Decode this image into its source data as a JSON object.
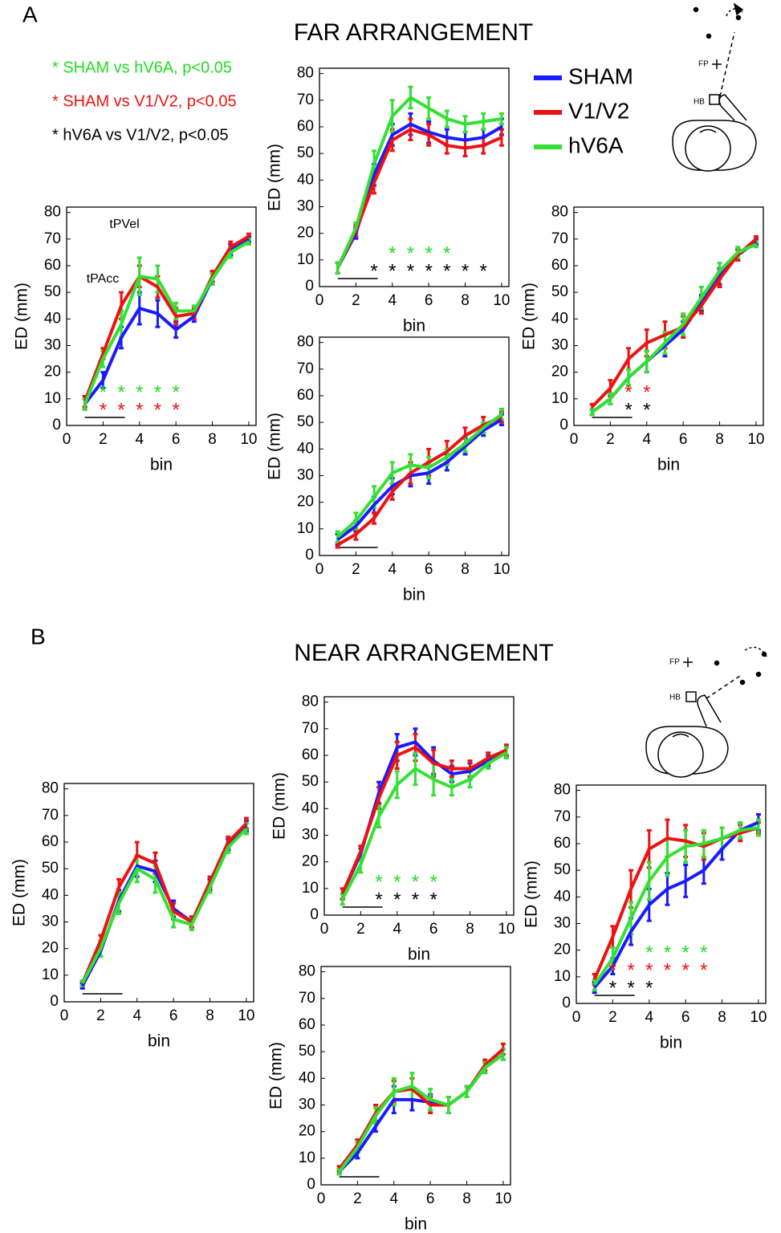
{
  "panel_labels": [
    "A",
    "B"
  ],
  "sections": [
    {
      "title": "FAR ARRANGEMENT"
    },
    {
      "title": "NEAR ARRANGEMENT"
    }
  ],
  "significance_legend": [
    {
      "text": "* SHAM vs hV6A, p<0.05",
      "color": "#22dd22"
    },
    {
      "text": "* SHAM vs V1/V2, p<0.05",
      "color": "#ee1111"
    },
    {
      "text": "* hV6A vs V1/V2, p<0.05",
      "color": "#000000"
    }
  ],
  "diagram_labels": {
    "fp": "FP",
    "hb": "HB"
  },
  "chart_data": [
    {
      "type": "line",
      "x": [
        1,
        2,
        3,
        4,
        5,
        6,
        7,
        8,
        9,
        10
      ],
      "xlim": [
        0,
        10.4
      ],
      "ylim": [
        0,
        82
      ],
      "xticks": [
        0,
        2,
        4,
        6,
        8,
        10
      ],
      "yticks": [
        0,
        10,
        20,
        30,
        40,
        50,
        60,
        70,
        80
      ],
      "xlabel": "bin",
      "ylabel": "ED (mm)",
      "time_bar": [
        1,
        3.2
      ],
      "annotations": [
        "tPVel",
        "tPAcc"
      ],
      "series": [
        {
          "name": "SHAM",
          "color": "#1a1aff",
          "values": [
            8,
            17,
            33,
            44,
            42,
            36,
            41,
            55,
            66,
            70
          ],
          "errors": [
            2,
            3,
            4,
            6,
            5,
            3,
            2,
            2,
            2,
            1
          ]
        },
        {
          "name": "V1/V2",
          "color": "#ee1111",
          "values": [
            9,
            27,
            45,
            56,
            52,
            41,
            42,
            56,
            67,
            71
          ],
          "errors": [
            2,
            2,
            5,
            4,
            4,
            3,
            2,
            2,
            2,
            1
          ]
        },
        {
          "name": "hV6A",
          "color": "#33e033",
          "values": [
            8,
            25,
            38,
            56,
            55,
            43,
            43,
            55,
            65,
            69
          ],
          "errors": [
            2,
            3,
            5,
            7,
            5,
            3,
            2,
            2,
            2,
            1
          ]
        }
      ],
      "significance": [
        {
          "symbol": "*",
          "color": "#22dd22",
          "bins": [
            2,
            3,
            4,
            5,
            6
          ]
        },
        {
          "symbol": "*",
          "color": "#ee1111",
          "bins": [
            2,
            3,
            4,
            5,
            6
          ]
        }
      ]
    },
    {
      "type": "line",
      "x": [
        1,
        2,
        3,
        4,
        5,
        6,
        7,
        8,
        9,
        10
      ],
      "xlim": [
        0,
        10.4
      ],
      "ylim": [
        0,
        82
      ],
      "xticks": [
        0,
        2,
        4,
        6,
        8,
        10
      ],
      "yticks": [
        0,
        10,
        20,
        30,
        40,
        50,
        60,
        70,
        80
      ],
      "xlabel": "bin",
      "ylabel": "ED (mm)",
      "time_bar": [
        1,
        3.2
      ],
      "series": [
        {
          "name": "SHAM",
          "color": "#1a1aff",
          "values": [
            7,
            20,
            42,
            57,
            61,
            58,
            56,
            55,
            56,
            60
          ],
          "errors": [
            2,
            2,
            4,
            4,
            4,
            4,
            3,
            3,
            3,
            3
          ]
        },
        {
          "name": "V1/V2",
          "color": "#ee1111",
          "values": [
            7,
            21,
            39,
            55,
            59,
            57,
            53,
            52,
            53,
            56
          ],
          "errors": [
            2,
            2,
            4,
            4,
            4,
            4,
            3,
            3,
            3,
            3
          ]
        },
        {
          "name": "hV6A",
          "color": "#33e033",
          "values": [
            7,
            22,
            46,
            64,
            71,
            67,
            63,
            61,
            62,
            63
          ],
          "errors": [
            2,
            2,
            5,
            6,
            4,
            4,
            3,
            3,
            3,
            2
          ]
        }
      ],
      "significance": [
        {
          "symbol": "*",
          "color": "#22dd22",
          "bins": [
            4,
            5,
            6,
            7
          ]
        },
        {
          "symbol": "*",
          "color": "#000000",
          "bins": [
            3,
            4,
            5,
            6,
            7,
            8,
            9
          ]
        }
      ]
    },
    {
      "type": "line",
      "x": [
        1,
        2,
        3,
        4,
        5,
        6,
        7,
        8,
        9,
        10
      ],
      "xlim": [
        0,
        10.4
      ],
      "ylim": [
        0,
        82
      ],
      "xticks": [
        0,
        2,
        4,
        6,
        8,
        10
      ],
      "yticks": [
        0,
        10,
        20,
        30,
        40,
        50,
        60,
        70,
        80
      ],
      "xlabel": "bin",
      "ylabel": "ED (mm)",
      "time_bar": [
        1,
        3.2
      ],
      "series": [
        {
          "name": "SHAM",
          "color": "#1a1aff",
          "values": [
            6,
            11,
            19,
            26,
            30,
            31,
            35,
            41,
            47,
            51
          ],
          "errors": [
            2,
            2,
            3,
            3,
            4,
            4,
            3,
            3,
            2,
            2
          ]
        },
        {
          "name": "V1/V2",
          "color": "#ee1111",
          "values": [
            4,
            8,
            14,
            24,
            31,
            35,
            39,
            45,
            49,
            52
          ],
          "errors": [
            1,
            2,
            2,
            3,
            4,
            5,
            4,
            3,
            3,
            2
          ]
        },
        {
          "name": "hV6A",
          "color": "#33e033",
          "values": [
            7,
            13,
            22,
            31,
            34,
            33,
            37,
            42,
            48,
            53
          ],
          "errors": [
            2,
            3,
            4,
            4,
            4,
            4,
            3,
            3,
            2,
            2
          ]
        }
      ],
      "significance": []
    },
    {
      "type": "line",
      "x": [
        1,
        2,
        3,
        4,
        5,
        6,
        7,
        8,
        9,
        10
      ],
      "xlim": [
        0,
        10.4
      ],
      "ylim": [
        0,
        82
      ],
      "xticks": [
        0,
        2,
        4,
        6,
        8,
        10
      ],
      "yticks": [
        0,
        10,
        20,
        30,
        40,
        50,
        60,
        70,
        80
      ],
      "xlabel": "bin",
      "ylabel": "ED (mm)",
      "time_bar": [
        1,
        3.2
      ],
      "series": [
        {
          "name": "SHAM",
          "color": "#1a1aff",
          "values": [
            5,
            10,
            18,
            24,
            30,
            36,
            46,
            56,
            64,
            69
          ],
          "errors": [
            1,
            2,
            3,
            4,
            4,
            3,
            3,
            3,
            2,
            1
          ]
        },
        {
          "name": "V1/V2",
          "color": "#ee1111",
          "values": [
            7,
            14,
            25,
            31,
            34,
            37,
            45,
            55,
            64,
            70
          ],
          "errors": [
            1,
            3,
            4,
            5,
            5,
            4,
            3,
            3,
            2,
            1
          ]
        },
        {
          "name": "hV6A",
          "color": "#33e033",
          "values": [
            5,
            10,
            18,
            24,
            31,
            38,
            48,
            58,
            65,
            68
          ],
          "errors": [
            1,
            2,
            3,
            4,
            4,
            4,
            4,
            3,
            2,
            1
          ]
        }
      ],
      "significance": [
        {
          "symbol": "*",
          "color": "#ee1111",
          "bins": [
            3,
            4
          ]
        },
        {
          "symbol": "*",
          "color": "#000000",
          "bins": [
            3,
            4
          ]
        }
      ]
    },
    {
      "type": "line",
      "x": [
        1,
        2,
        3,
        4,
        5,
        6,
        7,
        8,
        9,
        10
      ],
      "xlim": [
        0,
        10.4
      ],
      "ylim": [
        0,
        82
      ],
      "xticks": [
        0,
        2,
        4,
        6,
        8,
        10
      ],
      "yticks": [
        0,
        10,
        20,
        30,
        40,
        50,
        60,
        70,
        80
      ],
      "xlabel": "bin",
      "ylabel": "ED (mm)",
      "time_bar": [
        1,
        3.2
      ],
      "series": [
        {
          "name": "SHAM",
          "color": "#1a1aff",
          "values": [
            6,
            19,
            38,
            51,
            49,
            35,
            30,
            44,
            59,
            66
          ],
          "errors": [
            1,
            2,
            4,
            4,
            4,
            3,
            2,
            2,
            2,
            2
          ]
        },
        {
          "name": "V1/V2",
          "color": "#ee1111",
          "values": [
            7,
            23,
            43,
            55,
            52,
            34,
            30,
            45,
            60,
            67
          ],
          "errors": [
            1,
            2,
            3,
            5,
            4,
            3,
            2,
            2,
            2,
            2
          ]
        },
        {
          "name": "hV6A",
          "color": "#33e033",
          "values": [
            7,
            20,
            37,
            50,
            46,
            31,
            29,
            43,
            58,
            65
          ],
          "errors": [
            1,
            3,
            4,
            5,
            5,
            3,
            2,
            2,
            2,
            2
          ]
        }
      ],
      "significance": []
    },
    {
      "type": "line",
      "x": [
        1,
        2,
        3,
        4,
        5,
        6,
        7,
        8,
        9,
        10
      ],
      "xlim": [
        0,
        10.4
      ],
      "ylim": [
        0,
        82
      ],
      "xticks": [
        0,
        2,
        4,
        6,
        8,
        10
      ],
      "yticks": [
        0,
        10,
        20,
        30,
        40,
        50,
        60,
        70,
        80
      ],
      "xlabel": "bin",
      "ylabel": "ED (mm)",
      "time_bar": [
        1,
        3.2
      ],
      "series": [
        {
          "name": "SHAM",
          "color": "#1a1aff",
          "values": [
            8,
            23,
            46,
            63,
            65,
            58,
            53,
            54,
            58,
            61
          ],
          "errors": [
            2,
            2,
            4,
            5,
            5,
            5,
            3,
            3,
            2,
            2
          ]
        },
        {
          "name": "V1/V2",
          "color": "#ee1111",
          "values": [
            8,
            24,
            44,
            60,
            63,
            57,
            55,
            55,
            59,
            62
          ],
          "errors": [
            2,
            2,
            4,
            5,
            5,
            5,
            3,
            3,
            2,
            2
          ]
        },
        {
          "name": "hV6A",
          "color": "#33e033",
          "values": [
            6,
            19,
            37,
            49,
            55,
            51,
            48,
            51,
            57,
            61
          ],
          "errors": [
            2,
            3,
            4,
            5,
            6,
            6,
            3,
            3,
            2,
            2
          ]
        }
      ],
      "significance": [
        {
          "symbol": "*",
          "color": "#22dd22",
          "bins": [
            3,
            4,
            5,
            6
          ]
        },
        {
          "symbol": "*",
          "color": "#000000",
          "bins": [
            3,
            4,
            5,
            6
          ]
        }
      ]
    },
    {
      "type": "line",
      "x": [
        1,
        2,
        3,
        4,
        5,
        6,
        7,
        8,
        9,
        10
      ],
      "xlim": [
        0,
        10.4
      ],
      "ylim": [
        0,
        82
      ],
      "xticks": [
        0,
        2,
        4,
        6,
        8,
        10
      ],
      "yticks": [
        0,
        10,
        20,
        30,
        40,
        50,
        60,
        70,
        80
      ],
      "xlabel": "bin",
      "ylabel": "ED (mm)",
      "time_bar": [
        1,
        3.2
      ],
      "series": [
        {
          "name": "SHAM",
          "color": "#1a1aff",
          "values": [
            5,
            12,
            22,
            32,
            32,
            31,
            30,
            35,
            44,
            49
          ],
          "errors": [
            1,
            2,
            2,
            5,
            4,
            3,
            3,
            2,
            2,
            2
          ]
        },
        {
          "name": "V1/V2",
          "color": "#ee1111",
          "values": [
            6,
            15,
            27,
            35,
            36,
            30,
            30,
            35,
            45,
            51
          ],
          "errors": [
            1,
            2,
            3,
            4,
            4,
            3,
            3,
            2,
            2,
            2
          ]
        },
        {
          "name": "hV6A",
          "color": "#33e033",
          "values": [
            5,
            14,
            26,
            35,
            37,
            32,
            30,
            35,
            44,
            49
          ],
          "errors": [
            1,
            2,
            3,
            5,
            5,
            4,
            3,
            2,
            2,
            2
          ]
        }
      ],
      "significance": []
    },
    {
      "type": "line",
      "x": [
        1,
        2,
        3,
        4,
        5,
        6,
        7,
        8,
        9,
        10
      ],
      "xlim": [
        0,
        10.4
      ],
      "ylim": [
        0,
        82
      ],
      "xticks": [
        0,
        2,
        4,
        6,
        8,
        10
      ],
      "yticks": [
        0,
        10,
        20,
        30,
        40,
        50,
        60,
        70,
        80
      ],
      "xlabel": "bin",
      "ylabel": "ED (mm)",
      "time_bar": [
        1,
        3.2
      ],
      "series": [
        {
          "name": "SHAM",
          "color": "#1a1aff",
          "values": [
            6,
            14,
            27,
            37,
            43,
            46,
            50,
            58,
            65,
            68
          ],
          "errors": [
            2,
            3,
            5,
            6,
            6,
            6,
            5,
            4,
            3,
            3
          ]
        },
        {
          "name": "V1/V2",
          "color": "#ee1111",
          "values": [
            9,
            25,
            43,
            58,
            62,
            61,
            59,
            62,
            64,
            66
          ],
          "errors": [
            2,
            4,
            7,
            7,
            7,
            6,
            5,
            4,
            3,
            2
          ]
        },
        {
          "name": "hV6A",
          "color": "#33e033",
          "values": [
            7,
            17,
            32,
            46,
            55,
            59,
            60,
            62,
            65,
            66
          ],
          "errors": [
            2,
            4,
            6,
            7,
            7,
            6,
            5,
            4,
            3,
            3
          ]
        }
      ],
      "significance": [
        {
          "symbol": "*",
          "color": "#22dd22",
          "bins": [
            4,
            5,
            6,
            7
          ]
        },
        {
          "symbol": "*",
          "color": "#ee1111",
          "bins": [
            2,
            3,
            4,
            5,
            6,
            7
          ]
        },
        {
          "symbol": "*",
          "color": "#000000",
          "bins": [
            2,
            3,
            4
          ]
        }
      ]
    }
  ]
}
